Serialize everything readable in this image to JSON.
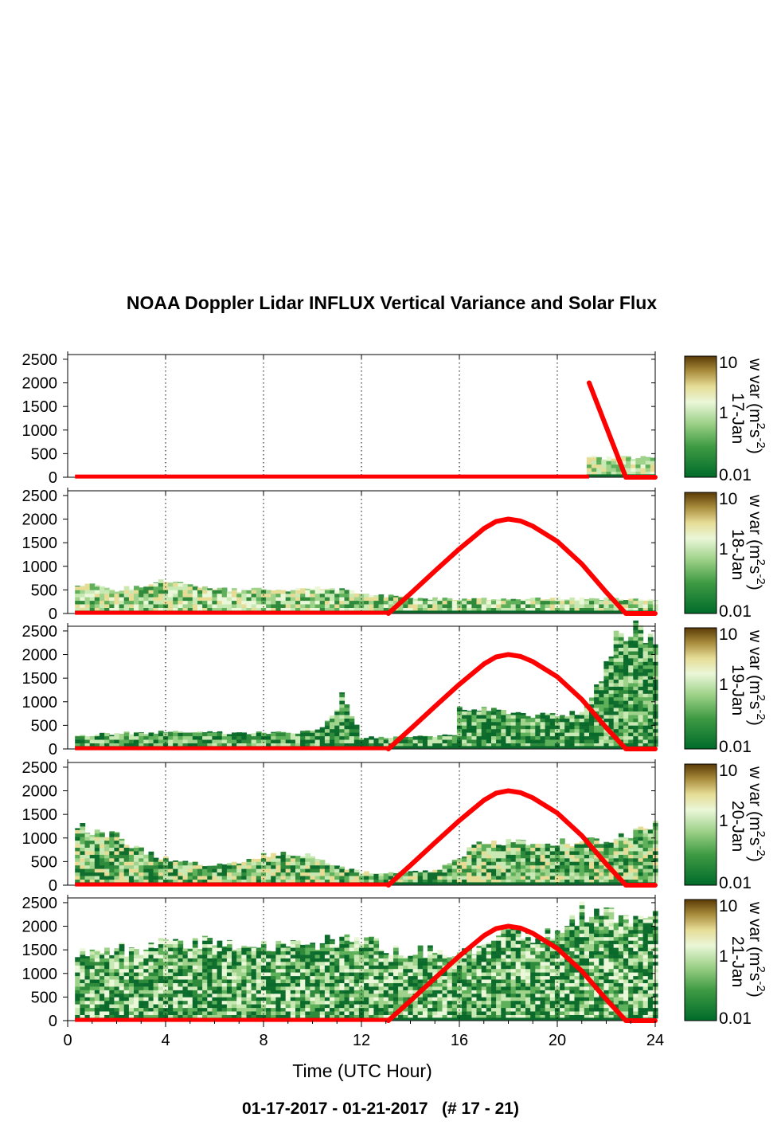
{
  "title": "NOAA Doppler Lidar INFLUX Vertical Variance and Solar Flux",
  "date_range": "01-17-2017 - 01-21-2017   (# 17 - 21)",
  "colors": {
    "flux_line": "#ff0000",
    "colorscale": [
      "#006b2a",
      "#3e9a43",
      "#9fd28a",
      "#eaf7d8",
      "#e6dc96",
      "#a78a3a",
      "#5a3a07"
    ]
  },
  "chart_data": {
    "type": "heatmap",
    "xlabel": "Time (UTC Hour)",
    "xlim": [
      0,
      24
    ],
    "x_ticks": [
      "0",
      "4",
      "8",
      "12",
      "16",
      "20",
      "24"
    ],
    "ylim": [
      0,
      2600
    ],
    "y_ticks": [
      "0",
      "500",
      "1000",
      "1500",
      "2000",
      "2500"
    ],
    "grid": "dotted vertical at 4-hour intervals",
    "colorbar": {
      "label": "w var (m^2 s^-2)",
      "label_parts": [
        "w var (m",
        "2",
        "s",
        "-2",
        ")"
      ],
      "scale": "log",
      "ticks": [
        "0.01",
        "1",
        "10"
      ]
    },
    "panels": [
      {
        "day": "17-Jan",
        "flux": [
          [
            21.3,
            2000
          ],
          [
            22.8,
            0
          ],
          [
            24,
            0
          ]
        ],
        "profile": [
          [
            21.2,
            420
          ],
          [
            21.5,
            430
          ],
          [
            22,
            400
          ],
          [
            22.5,
            420
          ],
          [
            23,
            430
          ],
          [
            23.5,
            420
          ],
          [
            24,
            400
          ]
        ],
        "texture": "pale"
      },
      {
        "day": "18-Jan",
        "flux": [
          [
            13.1,
            0
          ],
          [
            14,
            420
          ],
          [
            15,
            900
          ],
          [
            16,
            1370
          ],
          [
            17,
            1800
          ],
          [
            17.5,
            1950
          ],
          [
            18,
            2000
          ],
          [
            18.5,
            1960
          ],
          [
            19,
            1850
          ],
          [
            20,
            1530
          ],
          [
            21,
            1050
          ],
          [
            22,
            450
          ],
          [
            22.8,
            0
          ],
          [
            24,
            0
          ]
        ],
        "profile": [
          [
            0.3,
            560
          ],
          [
            1,
            600
          ],
          [
            2,
            500
          ],
          [
            3,
            570
          ],
          [
            4,
            720
          ],
          [
            5,
            600
          ],
          [
            6,
            520
          ],
          [
            7,
            500
          ],
          [
            8,
            500
          ],
          [
            9,
            500
          ],
          [
            10,
            540
          ],
          [
            11,
            520
          ],
          [
            12,
            440
          ],
          [
            13,
            380
          ],
          [
            14,
            330
          ],
          [
            16,
            300
          ],
          [
            18,
            320
          ],
          [
            20,
            330
          ],
          [
            22,
            310
          ],
          [
            24,
            300
          ]
        ],
        "texture": "pale-mixed"
      },
      {
        "day": "19-Jan",
        "flux": [
          [
            13.1,
            0
          ],
          [
            14,
            420
          ],
          [
            15,
            900
          ],
          [
            16,
            1370
          ],
          [
            17,
            1800
          ],
          [
            17.5,
            1950
          ],
          [
            18,
            2000
          ],
          [
            18.5,
            1960
          ],
          [
            19,
            1850
          ],
          [
            20,
            1530
          ],
          [
            21,
            1050
          ],
          [
            22,
            450
          ],
          [
            22.8,
            0
          ],
          [
            24,
            0
          ]
        ],
        "profile": [
          [
            0.3,
            280
          ],
          [
            2,
            330
          ],
          [
            4,
            360
          ],
          [
            6,
            350
          ],
          [
            8,
            340
          ],
          [
            10,
            360
          ],
          [
            10.8,
            650
          ],
          [
            11.2,
            1130
          ],
          [
            11.6,
            700
          ],
          [
            12,
            250
          ],
          [
            13,
            250
          ],
          [
            15,
            270
          ],
          [
            15.8,
            290
          ],
          [
            16,
            870
          ],
          [
            17,
            850
          ],
          [
            18,
            760
          ],
          [
            19,
            700
          ],
          [
            20,
            730
          ],
          [
            21,
            760
          ],
          [
            22,
            1800
          ],
          [
            22.6,
            2550
          ],
          [
            24,
            2400
          ]
        ],
        "texture": "dark"
      },
      {
        "day": "20-Jan",
        "flux": [
          [
            13.1,
            0
          ],
          [
            14,
            420
          ],
          [
            15,
            900
          ],
          [
            16,
            1370
          ],
          [
            17,
            1800
          ],
          [
            17.5,
            1950
          ],
          [
            18,
            2000
          ],
          [
            18.5,
            1960
          ],
          [
            19,
            1850
          ],
          [
            20,
            1530
          ],
          [
            21,
            1050
          ],
          [
            22,
            450
          ],
          [
            22.8,
            0
          ],
          [
            24,
            0
          ]
        ],
        "profile": [
          [
            0.3,
            1350
          ],
          [
            1,
            1120
          ],
          [
            2,
            1050
          ],
          [
            3,
            750
          ],
          [
            4,
            560
          ],
          [
            6,
            420
          ],
          [
            7,
            460
          ],
          [
            8,
            620
          ],
          [
            9,
            660
          ],
          [
            10,
            620
          ],
          [
            11,
            380
          ],
          [
            12,
            280
          ],
          [
            13,
            250
          ],
          [
            15,
            300
          ],
          [
            16,
            600
          ],
          [
            17,
            950
          ],
          [
            18,
            900
          ],
          [
            19,
            860
          ],
          [
            20,
            900
          ],
          [
            22,
            950
          ],
          [
            24,
            1250
          ]
        ],
        "texture": "medium"
      },
      {
        "day": "21-Jan",
        "flux": [
          [
            13.1,
            0
          ],
          [
            14,
            420
          ],
          [
            15,
            900
          ],
          [
            16,
            1370
          ],
          [
            17,
            1800
          ],
          [
            17.5,
            1950
          ],
          [
            18,
            2000
          ],
          [
            18.5,
            1960
          ],
          [
            19,
            1850
          ],
          [
            20,
            1530
          ],
          [
            21,
            1050
          ],
          [
            22,
            450
          ],
          [
            22.8,
            0
          ],
          [
            24,
            0
          ]
        ],
        "profile": [
          [
            0.3,
            1380
          ],
          [
            1,
            1480
          ],
          [
            2,
            1500
          ],
          [
            3,
            1520
          ],
          [
            4,
            1700
          ],
          [
            5,
            1680
          ],
          [
            6,
            1700
          ],
          [
            7,
            1650
          ],
          [
            8,
            1640
          ],
          [
            9,
            1620
          ],
          [
            10,
            1650
          ],
          [
            11,
            1700
          ],
          [
            12,
            1680
          ],
          [
            13,
            1560
          ],
          [
            14,
            1480
          ],
          [
            15,
            1480
          ],
          [
            16,
            1480
          ],
          [
            17,
            1500
          ],
          [
            18,
            1850
          ],
          [
            19,
            1830
          ],
          [
            20,
            1820
          ],
          [
            21,
            2300
          ],
          [
            22,
            2250
          ],
          [
            23,
            2100
          ],
          [
            24,
            2450
          ]
        ],
        "texture": "dark-full"
      }
    ]
  }
}
